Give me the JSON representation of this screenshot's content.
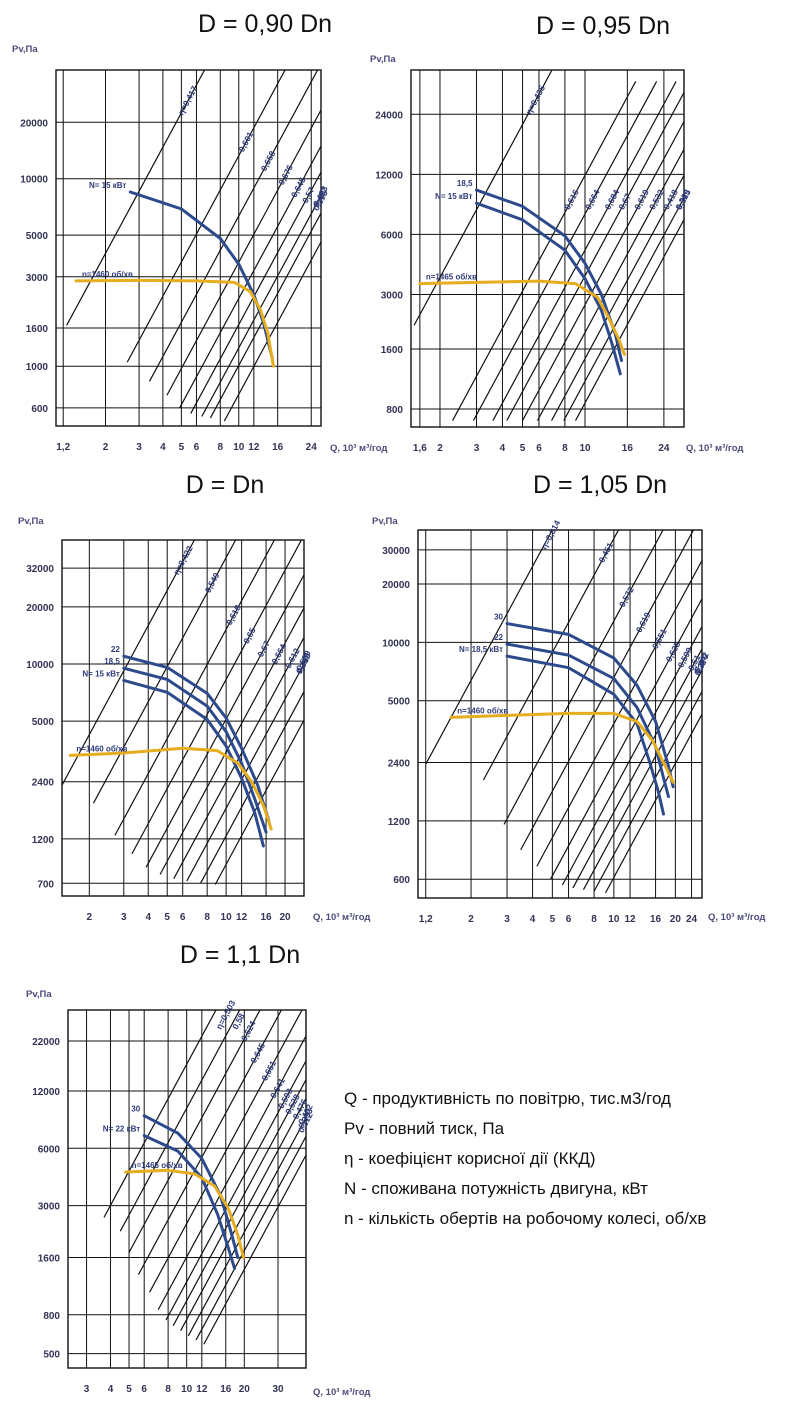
{
  "colors": {
    "grid": "#111111",
    "frame": "#111111",
    "pressure_curve": "#2c4a8c",
    "speed_curve": "#e6ad1e",
    "efficiency_line": "#111111",
    "label": "#2d3a78"
  },
  "legend": [
    "Q - продуктивність по повітрю, тис.м3/год",
    "Pv - повний тиск, Па",
    "η - коефіцієнт корисної дії (ККД)",
    "N - споживана потужність двигуна, кВт",
    "n - кількість обертів на робочому колесі, об/хв"
  ],
  "chart_data": [
    {
      "type": "line",
      "title": "D = 0,90 Dn",
      "xlabel": "Q, 10³ м³/год",
      "ylabel": "Pv,Па",
      "x_scale": "log",
      "y_scale": "log",
      "xlim": [
        1.1,
        27
      ],
      "ylim": [
        480,
        38000
      ],
      "x_ticks": [
        "1,2",
        "2",
        "3",
        "4",
        "5",
        "6",
        "8",
        "10",
        "12",
        "16",
        "24"
      ],
      "x_tick_values": [
        1.2,
        2,
        3,
        4,
        5,
        6,
        8,
        10,
        12,
        16,
        24
      ],
      "y_ticks": [
        "600",
        "1000",
        "1600",
        "3000",
        "5000",
        "10000",
        "20000"
      ],
      "y_tick_values": [
        600,
        1000,
        1600,
        3000,
        5000,
        10000,
        20000
      ],
      "series": [
        {
          "name": "N= 15 кВт",
          "kind": "pressure",
          "x": [
            2.7,
            5,
            8,
            10,
            12,
            13.5,
            15
          ],
          "y": [
            8500,
            6900,
            4800,
            3500,
            2400,
            1700,
            1100
          ]
        },
        {
          "name": "n=1460 об/хв",
          "kind": "speed",
          "x": [
            1.4,
            3,
            6,
            9.5,
            11.5,
            13,
            14.2,
            15.2
          ],
          "y": [
            2850,
            2870,
            2850,
            2800,
            2500,
            2000,
            1500,
            1000
          ]
        }
      ],
      "efficiency_lines": [
        {
          "label": "η=0,417",
          "x": 1.25,
          "y": 1650
        },
        {
          "label": "0,601",
          "x": 2.6,
          "y": 1050
        },
        {
          "label": "0,658",
          "x": 3.4,
          "y": 830
        },
        {
          "label": "0,676",
          "x": 4.2,
          "y": 700
        },
        {
          "label": "0,645",
          "x": 4.9,
          "y": 600
        },
        {
          "label": "0,57",
          "x": 5.6,
          "y": 560
        },
        {
          "label": "0,493",
          "x": 6.4,
          "y": 540
        },
        {
          "label": "0,427",
          "x": 7.1,
          "y": 530
        },
        {
          "label": "0,316",
          "x": 8.4,
          "y": 510
        }
      ]
    },
    {
      "type": "line",
      "title": "D = 0,95 Dn",
      "xlabel": "Q, 10³ м³/год",
      "ylabel": "Pv,Па",
      "x_scale": "log",
      "y_scale": "log",
      "xlim": [
        1.45,
        30
      ],
      "ylim": [
        650,
        40000
      ],
      "x_ticks": [
        "1,6",
        "2",
        "3",
        "4",
        "5",
        "6",
        "8",
        "10",
        "16",
        "24"
      ],
      "x_tick_values": [
        1.6,
        2,
        3,
        4,
        5,
        6,
        8,
        10,
        16,
        24
      ],
      "y_ticks": [
        "800",
        "1600",
        "3000",
        "6000",
        "12000",
        "24000"
      ],
      "y_tick_values": [
        800,
        1600,
        3000,
        6000,
        12000,
        24000
      ],
      "series": [
        {
          "name": "18,5",
          "kind": "pressure",
          "x": [
            3,
            5,
            8,
            10,
            12,
            14,
            15
          ],
          "y": [
            10000,
            8300,
            5900,
            4300,
            3000,
            1900,
            1400
          ]
        },
        {
          "name": "N= 15 кВт",
          "kind": "pressure",
          "x": [
            3,
            5,
            8,
            10,
            12,
            13.5,
            14.8
          ],
          "y": [
            8600,
            7100,
            5000,
            3600,
            2500,
            1700,
            1200
          ]
        },
        {
          "name": "n=1465 об/хв",
          "kind": "speed",
          "x": [
            1.6,
            3,
            6,
            9,
            11.5,
            13,
            14.5,
            15.5
          ],
          "y": [
            3400,
            3450,
            3500,
            3400,
            2900,
            2300,
            1800,
            1500
          ]
        }
      ],
      "efficiency_lines": [
        {
          "label": "η=0,435",
          "x": 1.5,
          "y": 2100
        },
        {
          "label": "0,616",
          "x": 2.3,
          "y": 700
        },
        {
          "label": "0,664",
          "x": 2.9,
          "y": 700
        },
        {
          "label": "0,684",
          "x": 3.6,
          "y": 700
        },
        {
          "label": "0,67",
          "x": 4.2,
          "y": 700
        },
        {
          "label": "0,619",
          "x": 5.0,
          "y": 700
        },
        {
          "label": "0,532",
          "x": 5.9,
          "y": 700
        },
        {
          "label": "0,418",
          "x": 6.9,
          "y": 700
        },
        {
          "label": "0,369",
          "x": 7.9,
          "y": 700
        },
        {
          "label": "0,325",
          "x": 9.0,
          "y": 700
        }
      ]
    },
    {
      "type": "line",
      "title": "D = Dn",
      "xlabel": "Q, 10³ м³/год",
      "ylabel": "Pv,Па",
      "x_scale": "log",
      "y_scale": "log",
      "xlim": [
        1.45,
        25
      ],
      "ylim": [
        600,
        45000
      ],
      "x_ticks": [
        "2",
        "3",
        "4",
        "5",
        "6",
        "8",
        "10",
        "12",
        "16",
        "20"
      ],
      "x_tick_values": [
        2,
        3,
        4,
        5,
        6,
        8,
        10,
        12,
        16,
        20
      ],
      "y_ticks": [
        "700",
        "1200",
        "2400",
        "5000",
        "10000",
        "20000",
        "32000"
      ],
      "y_tick_values": [
        700,
        1200,
        2400,
        5000,
        10000,
        20000,
        32000
      ],
      "series": [
        {
          "name": "22",
          "kind": "pressure",
          "x": [
            3,
            5,
            8,
            10,
            12,
            14.5,
            16.5
          ],
          "y": [
            11000,
            9600,
            7000,
            5200,
            3600,
            2300,
            1500
          ]
        },
        {
          "name": "18,5",
          "kind": "pressure",
          "x": [
            3,
            5,
            8,
            10,
            12,
            14,
            16
          ],
          "y": [
            9500,
            8300,
            6000,
            4400,
            3000,
            1950,
            1300
          ]
        },
        {
          "name": "N= 15 кВт",
          "kind": "pressure",
          "x": [
            3,
            5,
            8,
            10,
            12,
            14,
            15.5
          ],
          "y": [
            8200,
            7100,
            5100,
            3700,
            2500,
            1650,
            1100
          ]
        },
        {
          "name": "n=1460 об/хв",
          "kind": "speed",
          "x": [
            1.6,
            3,
            6,
            9,
            11.5,
            13.5,
            15.5,
            17
          ],
          "y": [
            3300,
            3400,
            3600,
            3500,
            3000,
            2400,
            1800,
            1350
          ]
        }
      ],
      "efficiency_lines": [
        {
          "label": "η=0,422",
          "x": 1.45,
          "y": 2300
        },
        {
          "label": "0,549",
          "x": 2.1,
          "y": 1850
        },
        {
          "label": "0,618",
          "x": 2.7,
          "y": 1250
        },
        {
          "label": "0,65",
          "x": 3.3,
          "y": 1000
        },
        {
          "label": "0,67",
          "x": 3.9,
          "y": 850
        },
        {
          "label": "0,664",
          "x": 4.6,
          "y": 780
        },
        {
          "label": "0,612",
          "x": 5.4,
          "y": 740
        },
        {
          "label": "0,529",
          "x": 6.3,
          "y": 720
        },
        {
          "label": "0,416",
          "x": 7.4,
          "y": 700
        },
        {
          "label": "0,317",
          "x": 8.8,
          "y": 690
        }
      ]
    },
    {
      "type": "line",
      "title": "D = 1,05 Dn",
      "xlabel": "Q, 10³ м³/год",
      "ylabel": "Pv,Па",
      "x_scale": "log",
      "y_scale": "log",
      "xlim": [
        1.1,
        27
      ],
      "ylim": [
        480,
        38000
      ],
      "x_ticks": [
        "1,2",
        "2",
        "3",
        "4",
        "5",
        "6",
        "8",
        "10",
        "12",
        "16",
        "20",
        "24"
      ],
      "x_tick_values": [
        1.2,
        2,
        3,
        4,
        5,
        6,
        8,
        10,
        12,
        16,
        20,
        24
      ],
      "y_ticks": [
        "600",
        "1200",
        "2400",
        "5000",
        "10000",
        "20000",
        "30000"
      ],
      "y_tick_values": [
        600,
        1200,
        2400,
        5000,
        10000,
        20000,
        30000
      ],
      "series": [
        {
          "name": "30",
          "kind": "pressure",
          "x": [
            3,
            6,
            10,
            13,
            16,
            18.5,
            19.5
          ],
          "y": [
            12500,
            11000,
            8300,
            6000,
            3900,
            2300,
            1800
          ]
        },
        {
          "name": "22",
          "kind": "pressure",
          "x": [
            3,
            6,
            10,
            13,
            16,
            17.5,
            18.5
          ],
          "y": [
            9800,
            8600,
            6500,
            4600,
            2900,
            2000,
            1600
          ]
        },
        {
          "name": "N= 18,5 кВт",
          "kind": "pressure",
          "x": [
            3,
            6,
            10,
            13,
            15,
            16.5,
            17.5
          ],
          "y": [
            8500,
            7400,
            5400,
            3800,
            2400,
            1700,
            1300
          ]
        },
        {
          "name": "n=1460 об/хв",
          "kind": "speed",
          "x": [
            1.6,
            3,
            6,
            10,
            13,
            15.5,
            17.5,
            19.5
          ],
          "y": [
            4100,
            4200,
            4300,
            4300,
            3900,
            3100,
            2400,
            1900
          ]
        }
      ],
      "efficiency_lines": [
        {
          "label": "η=0,314",
          "x": 1.2,
          "y": 2350
        },
        {
          "label": "0,451",
          "x": 2.3,
          "y": 1950
        },
        {
          "label": "0,572",
          "x": 2.9,
          "y": 1150
        },
        {
          "label": "0,619",
          "x": 3.5,
          "y": 850
        },
        {
          "label": "0,651",
          "x": 4.2,
          "y": 700
        },
        {
          "label": "0,638",
          "x": 4.9,
          "y": 600
        },
        {
          "label": "0,599",
          "x": 5.6,
          "y": 560
        },
        {
          "label": "0,51",
          "x": 6.3,
          "y": 540
        },
        {
          "label": "0,442",
          "x": 7.1,
          "y": 530
        },
        {
          "label": "0,379",
          "x": 8.0,
          "y": 520
        },
        {
          "label": "0,32",
          "x": 9.1,
          "y": 510
        }
      ]
    },
    {
      "type": "line",
      "title": "D = 1,1 Dn",
      "xlabel": "Q, 10³ м³/год",
      "ylabel": "Pv,Па",
      "x_scale": "log",
      "y_scale": "log",
      "xlim": [
        2.4,
        42
      ],
      "ylim": [
        420,
        32000
      ],
      "x_ticks": [
        "3",
        "4",
        "5",
        "6",
        "8",
        "10",
        "12",
        "16",
        "20",
        "30"
      ],
      "x_tick_values": [
        3,
        4,
        5,
        6,
        8,
        10,
        12,
        16,
        20,
        30
      ],
      "y_ticks": [
        "500",
        "800",
        "1600",
        "3000",
        "6000",
        "12000",
        "22000"
      ],
      "y_tick_values": [
        500,
        800,
        1600,
        3000,
        6000,
        12000,
        22000
      ],
      "series": [
        {
          "name": "30",
          "kind": "pressure",
          "x": [
            6,
            9,
            12,
            15,
            17,
            18.5
          ],
          "y": [
            8900,
            7200,
            5300,
            3400,
            2200,
            1600
          ]
        },
        {
          "name": "N= 22 кВт",
          "kind": "pressure",
          "x": [
            6,
            9,
            12,
            14.5,
            16.5,
            17.8
          ],
          "y": [
            7000,
            5800,
            4200,
            2700,
            1800,
            1400
          ]
        },
        {
          "name": "n=1465 об/хв",
          "kind": "speed",
          "x": [
            4.8,
            8,
            11,
            14,
            16.5,
            18.5,
            19.8
          ],
          "y": [
            4500,
            4600,
            4400,
            3800,
            2900,
            2100,
            1600
          ]
        }
      ],
      "efficiency_lines": [
        {
          "label": "η=0,503",
          "x": 3.7,
          "y": 2600
        },
        {
          "label": "0,58",
          "x": 4.5,
          "y": 2200
        },
        {
          "label": "0,624",
          "x": 5.0,
          "y": 1700
        },
        {
          "label": "0,645",
          "x": 5.6,
          "y": 1300
        },
        {
          "label": "0,651",
          "x": 6.4,
          "y": 1050
        },
        {
          "label": "0,641",
          "x": 7.1,
          "y": 850
        },
        {
          "label": "0,593",
          "x": 7.8,
          "y": 750
        },
        {
          "label": "0,528",
          "x": 8.5,
          "y": 700
        },
        {
          "label": "0,476",
          "x": 9.3,
          "y": 660
        },
        {
          "label": "0,402",
          "x": 10.2,
          "y": 620
        },
        {
          "label": "0,353",
          "x": 11.2,
          "y": 590
        },
        {
          "label": "0,312",
          "x": 12.3,
          "y": 560
        }
      ]
    }
  ]
}
